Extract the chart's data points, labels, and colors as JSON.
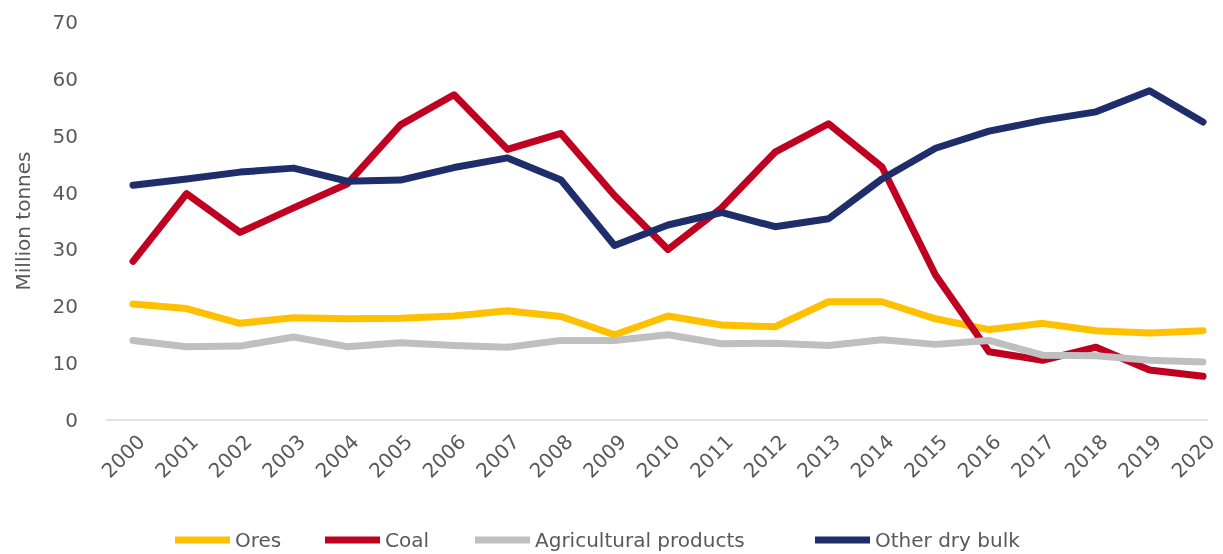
{
  "chart_data": {
    "type": "line",
    "ylabel": "Million tonnes",
    "categories": [
      "2000",
      "2001",
      "2002",
      "2003",
      "2004",
      "2005",
      "2006",
      "2007",
      "2008",
      "2009",
      "2010",
      "2011",
      "2012",
      "2013",
      "2014",
      "2015",
      "2016",
      "2017",
      "2018",
      "2019",
      "2020"
    ],
    "ylim": [
      0,
      70
    ],
    "yticks": [
      0,
      10,
      20,
      30,
      40,
      50,
      60,
      70
    ],
    "grid": false,
    "legend": "bottom",
    "marker": "none",
    "line_style": "solid",
    "series": [
      {
        "name": "Ores",
        "color": "#ffc000",
        "values": [
          20.4,
          19.6,
          17.0,
          18.0,
          17.8,
          17.9,
          18.3,
          19.2,
          18.2,
          15.0,
          18.3,
          16.7,
          16.4,
          20.8,
          20.8,
          17.8,
          15.9,
          17.0,
          15.7,
          15.3,
          15.7
        ]
      },
      {
        "name": "Coal",
        "color": "#c00021",
        "values": [
          27.9,
          39.8,
          33.0,
          37.3,
          41.5,
          51.9,
          57.2,
          47.6,
          50.4,
          39.5,
          30.0,
          37.3,
          47.1,
          52.1,
          44.5,
          25.5,
          12.0,
          10.5,
          12.8,
          8.8,
          7.7
        ]
      },
      {
        "name": "Agricultural products",
        "color": "#bfbfbf",
        "values": [
          14.0,
          12.9,
          13.0,
          14.6,
          12.9,
          13.6,
          13.1,
          12.8,
          14.0,
          14.0,
          15.0,
          13.4,
          13.5,
          13.1,
          14.1,
          13.3,
          14.0,
          11.4,
          11.3,
          10.5,
          10.2
        ]
      },
      {
        "name": "Other dry bulk",
        "color": "#1f2d6b",
        "values": [
          41.3,
          42.4,
          43.6,
          44.3,
          42.0,
          42.2,
          44.4,
          46.1,
          42.2,
          30.7,
          34.3,
          36.5,
          34.0,
          35.4,
          42.4,
          47.8,
          50.8,
          52.7,
          54.2,
          57.9,
          52.4
        ]
      }
    ]
  }
}
